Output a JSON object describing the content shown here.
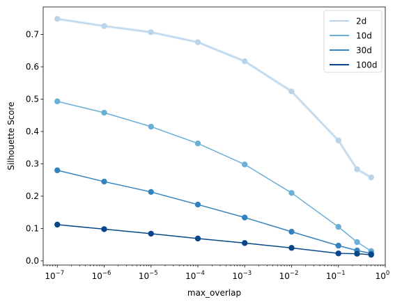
{
  "chart_data": {
    "type": "line",
    "xlabel": "max_overlap",
    "ylabel": "Silhouette Score",
    "xscale": "log",
    "xlim": [
      5e-08,
      1
    ],
    "ylim": [
      -0.013,
      0.785
    ],
    "grid": false,
    "legend_placement": "top-right",
    "x": [
      1e-07,
      1e-06,
      1e-05,
      0.0001,
      0.001,
      0.01,
      0.1,
      0.25,
      0.5
    ],
    "x_ticks": [
      {
        "value": 1e-07,
        "base": "10",
        "exp": "−7"
      },
      {
        "value": 1e-06,
        "base": "10",
        "exp": "−6"
      },
      {
        "value": 1e-05,
        "base": "10",
        "exp": "−5"
      },
      {
        "value": 0.0001,
        "base": "10",
        "exp": "−4"
      },
      {
        "value": 0.001,
        "base": "10",
        "exp": "−3"
      },
      {
        "value": 0.01,
        "base": "10",
        "exp": "−2"
      },
      {
        "value": 0.1,
        "base": "10",
        "exp": "−1"
      },
      {
        "value": 1,
        "base": "10",
        "exp": "0"
      }
    ],
    "y_ticks": [
      "0.0",
      "0.1",
      "0.2",
      "0.3",
      "0.4",
      "0.5",
      "0.6",
      "0.7"
    ],
    "series": [
      {
        "name": "2d",
        "color": "#b9d4ea",
        "values": [
          0.748,
          0.726,
          0.707,
          0.676,
          0.617,
          0.524,
          0.372,
          0.283,
          0.258
        ]
      },
      {
        "name": "10d",
        "color": "#6baed6",
        "values": [
          0.493,
          0.458,
          0.415,
          0.363,
          0.298,
          0.21,
          0.105,
          0.058,
          0.03
        ]
      },
      {
        "name": "30d",
        "color": "#3383be",
        "values": [
          0.28,
          0.245,
          0.213,
          0.174,
          0.134,
          0.09,
          0.047,
          0.032,
          0.023
        ]
      },
      {
        "name": "100d",
        "color": "#08468a",
        "values": [
          0.112,
          0.098,
          0.084,
          0.069,
          0.055,
          0.04,
          0.023,
          0.022,
          0.019
        ]
      }
    ]
  }
}
